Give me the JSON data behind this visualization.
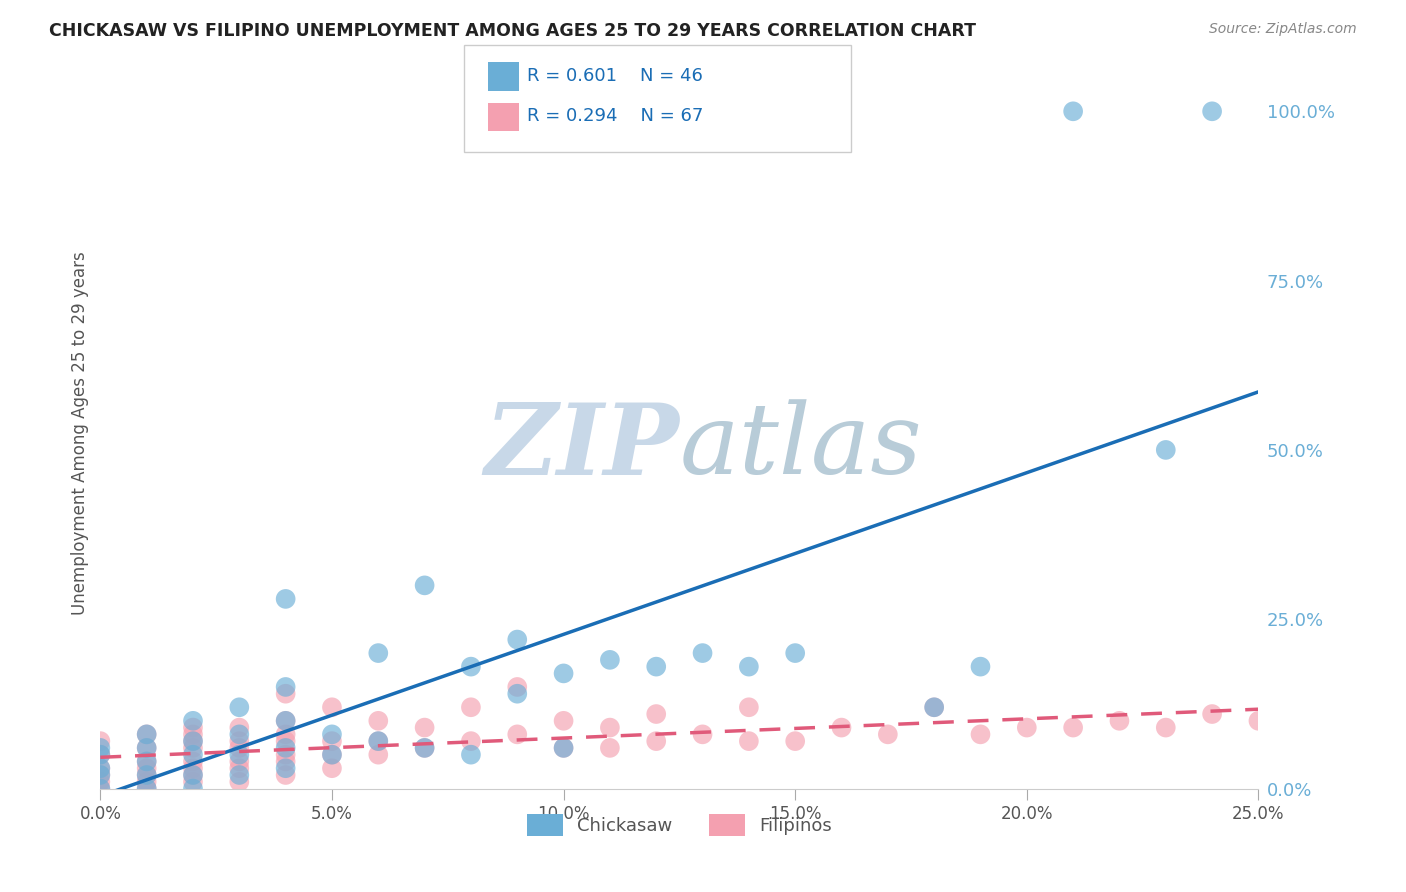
{
  "title": "CHICKASAW VS FILIPINO UNEMPLOYMENT AMONG AGES 25 TO 29 YEARS CORRELATION CHART",
  "source": "Source: ZipAtlas.com",
  "ylabel": "Unemployment Among Ages 25 to 29 years",
  "xlim": [
    0.0,
    0.25
  ],
  "ylim": [
    0.0,
    1.05
  ],
  "xtick_labels": [
    "0.0%",
    "5.0%",
    "10.0%",
    "15.0%",
    "20.0%",
    "25.0%"
  ],
  "xtick_vals": [
    0.0,
    0.05,
    0.1,
    0.15,
    0.2,
    0.25
  ],
  "ytick_labels": [
    "0.0%",
    "25.0%",
    "50.0%",
    "75.0%",
    "100.0%"
  ],
  "ytick_vals": [
    0.0,
    0.25,
    0.5,
    0.75,
    1.0
  ],
  "chickasaw_R": "0.601",
  "chickasaw_N": "46",
  "filipino_R": "0.294",
  "filipino_N": "67",
  "chickasaw_color": "#6aaed6",
  "filipino_color": "#f4a0b0",
  "chickasaw_line_color": "#1a6db5",
  "filipino_line_color": "#e05a7a",
  "watermark_zip": "ZIP",
  "watermark_atlas": "atlas",
  "watermark_color_zip": "#c8d8e8",
  "watermark_color_atlas": "#b8ccd8",
  "chickasaw_x": [
    0.0,
    0.0,
    0.0,
    0.0,
    0.0,
    0.01,
    0.01,
    0.01,
    0.01,
    0.01,
    0.02,
    0.02,
    0.02,
    0.02,
    0.02,
    0.03,
    0.03,
    0.03,
    0.03,
    0.04,
    0.04,
    0.04,
    0.04,
    0.04,
    0.05,
    0.05,
    0.06,
    0.06,
    0.07,
    0.07,
    0.08,
    0.08,
    0.09,
    0.09,
    0.1,
    0.1,
    0.11,
    0.12,
    0.13,
    0.14,
    0.15,
    0.18,
    0.19,
    0.21,
    0.23,
    0.24
  ],
  "chickasaw_y": [
    0.0,
    0.02,
    0.03,
    0.05,
    0.06,
    0.0,
    0.02,
    0.04,
    0.06,
    0.08,
    0.0,
    0.02,
    0.05,
    0.07,
    0.1,
    0.02,
    0.05,
    0.08,
    0.12,
    0.03,
    0.06,
    0.1,
    0.15,
    0.28,
    0.05,
    0.08,
    0.07,
    0.2,
    0.06,
    0.3,
    0.05,
    0.18,
    0.14,
    0.22,
    0.06,
    0.17,
    0.19,
    0.18,
    0.2,
    0.18,
    0.2,
    0.12,
    0.18,
    1.0,
    0.5,
    1.0
  ],
  "filipino_x": [
    0.0,
    0.0,
    0.0,
    0.0,
    0.0,
    0.0,
    0.01,
    0.01,
    0.01,
    0.01,
    0.01,
    0.01,
    0.01,
    0.02,
    0.02,
    0.02,
    0.02,
    0.02,
    0.02,
    0.02,
    0.02,
    0.03,
    0.03,
    0.03,
    0.03,
    0.03,
    0.03,
    0.04,
    0.04,
    0.04,
    0.04,
    0.04,
    0.04,
    0.04,
    0.05,
    0.05,
    0.05,
    0.05,
    0.06,
    0.06,
    0.06,
    0.07,
    0.07,
    0.08,
    0.08,
    0.09,
    0.09,
    0.1,
    0.1,
    0.11,
    0.11,
    0.12,
    0.12,
    0.13,
    0.14,
    0.14,
    0.15,
    0.16,
    0.17,
    0.18,
    0.19,
    0.2,
    0.21,
    0.22,
    0.23,
    0.24,
    0.25
  ],
  "filipino_y": [
    0.0,
    0.01,
    0.02,
    0.03,
    0.05,
    0.07,
    0.0,
    0.01,
    0.02,
    0.03,
    0.04,
    0.06,
    0.08,
    0.01,
    0.02,
    0.03,
    0.04,
    0.06,
    0.07,
    0.08,
    0.09,
    0.01,
    0.03,
    0.04,
    0.06,
    0.07,
    0.09,
    0.02,
    0.04,
    0.05,
    0.07,
    0.08,
    0.1,
    0.14,
    0.03,
    0.05,
    0.07,
    0.12,
    0.05,
    0.07,
    0.1,
    0.06,
    0.09,
    0.07,
    0.12,
    0.08,
    0.15,
    0.06,
    0.1,
    0.06,
    0.09,
    0.07,
    0.11,
    0.08,
    0.07,
    0.12,
    0.07,
    0.09,
    0.08,
    0.12,
    0.08,
    0.09,
    0.09,
    0.1,
    0.09,
    0.11,
    0.1
  ],
  "grid_color": "#cccccc",
  "bg_color": "#ffffff",
  "tick_color": "#aaaaaa",
  "label_color": "#555555",
  "axis_label_color": "#6aaed6"
}
